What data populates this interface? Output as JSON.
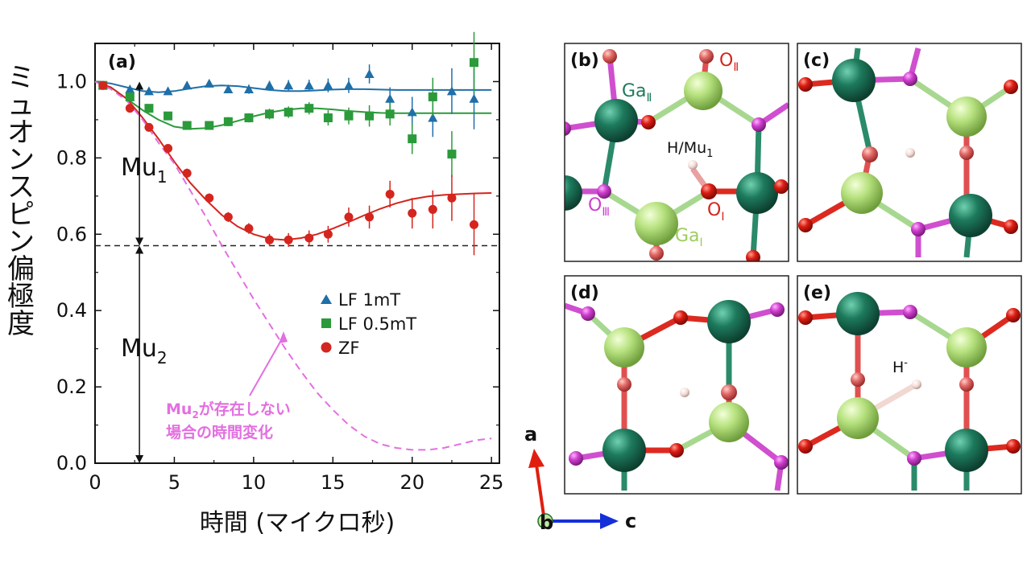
{
  "chart_data": [
    {
      "type": "scatter",
      "panel_label": "(a)",
      "ylabel": "ミュオンスピン偏極度",
      "xlabel": "時間 (マイクロ秒)",
      "xlim": [
        0,
        25.5
      ],
      "ylim": [
        0,
        1.1
      ],
      "xticks": [
        "0",
        "5",
        "10",
        "15",
        "20",
        "25"
      ],
      "yticks": [
        "0.0",
        "0.2",
        "0.4",
        "0.6",
        "0.8",
        "1.0"
      ],
      "legend_position": "lower-right",
      "colors": {
        "lf1": "#1f6fa8",
        "lf05": "#2a9a3a",
        "zf": "#d4251e",
        "annotation": "#e36fe0"
      },
      "series": [
        {
          "name": "LF 1mT",
          "marker": "triangle",
          "x": [
            0.5,
            2.2,
            3.4,
            4.6,
            5.8,
            7.2,
            8.4,
            9.7,
            11,
            12.2,
            13.5,
            14.7,
            16,
            17.3,
            18.6,
            20,
            21.3,
            22.5,
            23.9
          ],
          "y": [
            0.99,
            0.98,
            0.975,
            0.975,
            0.99,
            0.995,
            0.98,
            0.98,
            0.99,
            0.99,
            0.99,
            0.99,
            0.99,
            1.02,
            0.955,
            0.92,
            0.905,
            0.975,
            0.955
          ],
          "err": [
            0.005,
            0.008,
            0.008,
            0.01,
            0.01,
            0.01,
            0.01,
            0.012,
            0.012,
            0.014,
            0.015,
            0.018,
            0.02,
            0.025,
            0.03,
            0.04,
            0.05,
            0.06,
            0.08
          ]
        },
        {
          "name": "LF 0.5mT",
          "marker": "square",
          "x": [
            0.5,
            2.2,
            3.4,
            4.6,
            5.8,
            7.2,
            8.4,
            9.7,
            11,
            12.2,
            13.5,
            14.7,
            16,
            17.3,
            18.6,
            20,
            21.3,
            22.5,
            23.9
          ],
          "y": [
            0.99,
            0.96,
            0.93,
            0.91,
            0.885,
            0.885,
            0.895,
            0.905,
            0.915,
            0.92,
            0.93,
            0.905,
            0.91,
            0.91,
            0.915,
            0.85,
            0.96,
            0.81,
            1.05
          ],
          "err": [
            0.005,
            0.008,
            0.008,
            0.01,
            0.01,
            0.01,
            0.012,
            0.012,
            0.014,
            0.015,
            0.016,
            0.02,
            0.022,
            0.028,
            0.03,
            0.04,
            0.05,
            0.06,
            0.08
          ]
        },
        {
          "name": "ZF",
          "marker": "circle",
          "x": [
            0.5,
            2.2,
            3.4,
            4.6,
            5.8,
            7.2,
            8.4,
            9.7,
            11,
            12.2,
            13.5,
            14.7,
            16,
            17.3,
            18.6,
            20,
            21.3,
            22.5,
            23.9
          ],
          "y": [
            0.99,
            0.93,
            0.88,
            0.825,
            0.76,
            0.695,
            0.645,
            0.615,
            0.585,
            0.585,
            0.59,
            0.6,
            0.645,
            0.645,
            0.705,
            0.655,
            0.665,
            0.695,
            0.625
          ],
          "err": [
            0.005,
            0.008,
            0.01,
            0.01,
            0.012,
            0.012,
            0.013,
            0.014,
            0.016,
            0.018,
            0.02,
            0.022,
            0.025,
            0.03,
            0.035,
            0.04,
            0.05,
            0.06,
            0.08
          ]
        }
      ],
      "fits": [
        {
          "series": "LF 1mT",
          "x": [
            0,
            1,
            2,
            3,
            4,
            5,
            6,
            7,
            8,
            9,
            10,
            11,
            12,
            13,
            14,
            15,
            16,
            17,
            18,
            19,
            20,
            21,
            22,
            23,
            24,
            25
          ],
          "y": [
            1.0,
            0.995,
            0.985,
            0.975,
            0.972,
            0.975,
            0.982,
            0.988,
            0.99,
            0.988,
            0.983,
            0.978,
            0.975,
            0.975,
            0.977,
            0.979,
            0.98,
            0.98,
            0.979,
            0.978,
            0.978,
            0.978,
            0.978,
            0.978,
            0.978,
            0.978
          ]
        },
        {
          "series": "LF 0.5mT",
          "x": [
            0,
            1,
            2,
            3,
            4,
            5,
            6,
            7,
            8,
            9,
            10,
            11,
            12,
            13,
            14,
            15,
            16,
            17,
            18,
            19,
            20,
            21,
            22,
            23,
            24,
            25
          ],
          "y": [
            1.0,
            0.985,
            0.955,
            0.925,
            0.9,
            0.882,
            0.876,
            0.878,
            0.886,
            0.897,
            0.909,
            0.919,
            0.926,
            0.93,
            0.93,
            0.927,
            0.923,
            0.92,
            0.918,
            0.917,
            0.917,
            0.917,
            0.917,
            0.917,
            0.917,
            0.917
          ]
        },
        {
          "series": "ZF",
          "x": [
            0,
            1,
            2,
            3,
            4,
            5,
            6,
            7,
            8,
            9,
            10,
            11,
            12,
            13,
            14,
            15,
            16,
            17,
            18,
            19,
            20,
            21,
            22,
            23,
            24,
            25
          ],
          "y": [
            1.0,
            0.985,
            0.955,
            0.905,
            0.85,
            0.79,
            0.735,
            0.69,
            0.65,
            0.62,
            0.6,
            0.588,
            0.585,
            0.59,
            0.6,
            0.615,
            0.632,
            0.65,
            0.667,
            0.681,
            0.692,
            0.699,
            0.703,
            0.705,
            0.707,
            0.708
          ]
        },
        {
          "series": "Mu2-absent",
          "dashed": true,
          "x": [
            0,
            1,
            2,
            3,
            4,
            5,
            6,
            7,
            8,
            9,
            10,
            11,
            12,
            13,
            14,
            15,
            16,
            17,
            18,
            19,
            20,
            21,
            22,
            23,
            24,
            25
          ],
          "y": [
            1.0,
            0.98,
            0.95,
            0.9,
            0.84,
            0.785,
            0.715,
            0.645,
            0.57,
            0.5,
            0.43,
            0.365,
            0.3,
            0.24,
            0.185,
            0.14,
            0.1,
            0.07,
            0.05,
            0.04,
            0.035,
            0.035,
            0.04,
            0.05,
            0.06,
            0.065
          ]
        }
      ],
      "reference_line": {
        "y": 0.57,
        "style": "dashed"
      },
      "annotations": {
        "mu1": {
          "base": "Mu",
          "sub": "1"
        },
        "mu2": {
          "base": "Mu",
          "sub": "2"
        },
        "mu2_absent_line1": {
          "pre": "Mu",
          "sub": "2",
          "post": "が存在しない"
        },
        "mu2_absent_line2": "場合の時間変化"
      },
      "arrow_x": 2.8
    },
    {
      "type": "other",
      "panels": [
        {
          "label": "(b)",
          "atom_labels": [
            {
              "base": "O",
              "sub": "Ⅱ"
            },
            {
              "base": "Ga",
              "sub": "Ⅱ"
            },
            {
              "base": "H/Mu",
              "sub": "1"
            },
            {
              "base": "O",
              "sub": "Ⅲ"
            },
            {
              "base": "O",
              "sub": "I"
            },
            {
              "base": "Ga",
              "sub": "I"
            }
          ]
        },
        {
          "label": "(c)"
        },
        {
          "label": "(d)"
        },
        {
          "label": "(e)",
          "atom_label": {
            "base": "H",
            "sup": "-"
          }
        }
      ],
      "axes_labels": {
        "a": "a",
        "b": "b",
        "c": "c"
      }
    }
  ]
}
